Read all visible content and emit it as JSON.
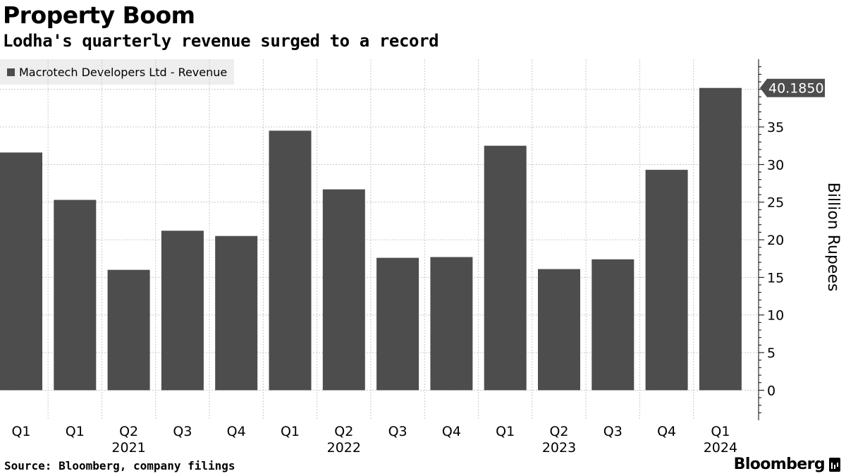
{
  "header": {
    "title": "Property Boom",
    "subtitle": "Lodha's quarterly revenue surged to a record"
  },
  "legend": {
    "label": "Macrotech Developers Ltd - Revenue",
    "color": "#4d4d4d"
  },
  "footer": {
    "source": "Source: Bloomberg, company filings",
    "brand": "Bloomberg"
  },
  "chart_data": {
    "type": "bar",
    "title": "Property Boom",
    "subtitle": "Lodha's quarterly revenue surged to a record",
    "categories": [
      "Q1",
      "Q1",
      "Q2",
      "Q3",
      "Q4",
      "Q1",
      "Q2",
      "Q3",
      "Q4",
      "Q1",
      "Q2",
      "Q3",
      "Q4",
      "Q1"
    ],
    "year_labels": [
      {
        "label": "2021",
        "index": 2
      },
      {
        "label": "2022",
        "index": 6
      },
      {
        "label": "2023",
        "index": 10
      },
      {
        "label": "2024",
        "index": 13
      }
    ],
    "series": [
      {
        "name": "Macrotech Developers Ltd - Revenue",
        "color": "#4d4d4d",
        "values": [
          31.6,
          25.3,
          16.0,
          21.2,
          20.5,
          34.5,
          26.7,
          17.6,
          17.7,
          32.5,
          16.1,
          17.4,
          29.3,
          40.185
        ]
      }
    ],
    "ylabel": "Billion Rupees",
    "ylim": [
      -4,
      44
    ],
    "yticks": [
      0,
      5,
      10,
      15,
      20,
      25,
      30,
      35
    ],
    "yaxis_side": "right",
    "grid": true,
    "last_value_label": "40.1850"
  }
}
